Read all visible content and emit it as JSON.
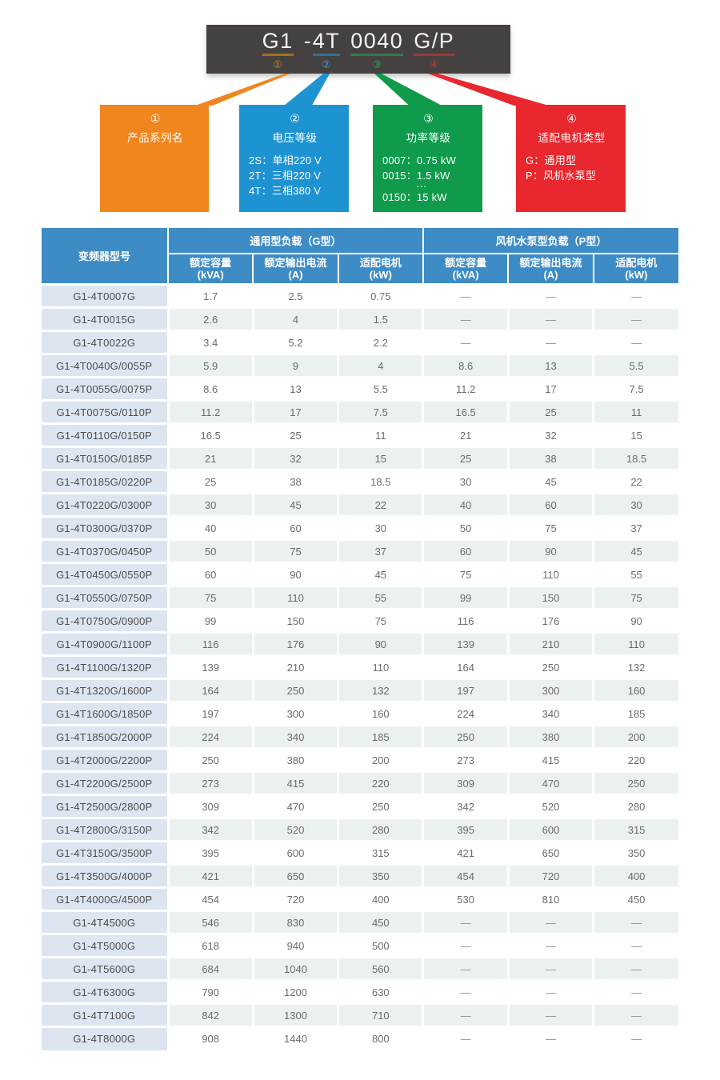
{
  "colors": {
    "banner_bg": "#454140",
    "series_orange": "#F0861E",
    "voltage_blue": "#1E93D2",
    "power_green": "#0F9B4B",
    "motor_red": "#E8282E",
    "header_blue": "#3E8CC6",
    "model_col_bg": "#DDE5F0",
    "stripe_bg": "#EBF1F0",
    "underline_orange": "#A96E1F",
    "underline_blue": "#2D6F9F",
    "underline_green": "#2E7B4D",
    "underline_red": "#9C3A3A",
    "marker_orange": "#C98A2D",
    "marker_blue": "#4095D2",
    "marker_green": "#33A35C",
    "marker_red": "#C4393C"
  },
  "banner": {
    "tokens": [
      {
        "prefix": "",
        "text": "G1",
        "marker": "①"
      },
      {
        "prefix": "-",
        "text": "4T",
        "marker": "②"
      },
      {
        "prefix": "",
        "text": "0040",
        "marker": "③"
      },
      {
        "prefix": "",
        "text": "G/P",
        "marker": "④"
      }
    ]
  },
  "callouts": [
    {
      "marker": "①",
      "title": "产品系列名",
      "lines": []
    },
    {
      "marker": "②",
      "title": "电压等级",
      "lines": [
        "2S：单相220 V",
        "2T：三相220 V",
        "4T：三相380 V"
      ]
    },
    {
      "marker": "③",
      "title": "功率等级",
      "lines": [
        "0007：0.75 kW",
        "0015：1.5 kW",
        "···",
        "0150：15 kW"
      ]
    },
    {
      "marker": "④",
      "title": "适配电机类型",
      "lines": [
        "G：通用型",
        "P：风机水泵型"
      ]
    }
  ],
  "table": {
    "model_header": "变频器型号",
    "group_headers": [
      "通用型负载（G型）",
      "风机水泵型负载（P型）"
    ],
    "sub_headers": [
      "额定容量\n(kVA)",
      "额定输出电流\n(A)",
      "适配电机\n(kW)",
      "额定容量\n(kVA)",
      "额定输出电流\n(A)",
      "适配电机\n(kW)"
    ],
    "rows": [
      [
        "G1-4T0007G",
        "1.7",
        "2.5",
        "0.75",
        "—",
        "—",
        "—"
      ],
      [
        "G1-4T0015G",
        "2.6",
        "4",
        "1.5",
        "—",
        "—",
        "—"
      ],
      [
        "G1-4T0022G",
        "3.4",
        "5.2",
        "2.2",
        "—",
        "—",
        "—"
      ],
      [
        "G1-4T0040G/0055P",
        "5.9",
        "9",
        "4",
        "8.6",
        "13",
        "5.5"
      ],
      [
        "G1-4T0055G/0075P",
        "8.6",
        "13",
        "5.5",
        "11.2",
        "17",
        "7.5"
      ],
      [
        "G1-4T0075G/0110P",
        "11.2",
        "17",
        "7.5",
        "16.5",
        "25",
        "11"
      ],
      [
        "G1-4T0110G/0150P",
        "16.5",
        "25",
        "11",
        "21",
        "32",
        "15"
      ],
      [
        "G1-4T0150G/0185P",
        "21",
        "32",
        "15",
        "25",
        "38",
        "18.5"
      ],
      [
        "G1-4T0185G/0220P",
        "25",
        "38",
        "18.5",
        "30",
        "45",
        "22"
      ],
      [
        "G1-4T0220G/0300P",
        "30",
        "45",
        "22",
        "40",
        "60",
        "30"
      ],
      [
        "G1-4T0300G/0370P",
        "40",
        "60",
        "30",
        "50",
        "75",
        "37"
      ],
      [
        "G1-4T0370G/0450P",
        "50",
        "75",
        "37",
        "60",
        "90",
        "45"
      ],
      [
        "G1-4T0450G/0550P",
        "60",
        "90",
        "45",
        "75",
        "110",
        "55"
      ],
      [
        "G1-4T0550G/0750P",
        "75",
        "110",
        "55",
        "99",
        "150",
        "75"
      ],
      [
        "G1-4T0750G/0900P",
        "99",
        "150",
        "75",
        "116",
        "176",
        "90"
      ],
      [
        "G1-4T0900G/1100P",
        "116",
        "176",
        "90",
        "139",
        "210",
        "110"
      ],
      [
        "G1-4T1100G/1320P",
        "139",
        "210",
        "110",
        "164",
        "250",
        "132"
      ],
      [
        "G1-4T1320G/1600P",
        "164",
        "250",
        "132",
        "197",
        "300",
        "160"
      ],
      [
        "G1-4T1600G/1850P",
        "197",
        "300",
        "160",
        "224",
        "340",
        "185"
      ],
      [
        "G1-4T1850G/2000P",
        "224",
        "340",
        "185",
        "250",
        "380",
        "200"
      ],
      [
        "G1-4T2000G/2200P",
        "250",
        "380",
        "200",
        "273",
        "415",
        "220"
      ],
      [
        "G1-4T2200G/2500P",
        "273",
        "415",
        "220",
        "309",
        "470",
        "250"
      ],
      [
        "G1-4T2500G/2800P",
        "309",
        "470",
        "250",
        "342",
        "520",
        "280"
      ],
      [
        "G1-4T2800G/3150P",
        "342",
        "520",
        "280",
        "395",
        "600",
        "315"
      ],
      [
        "G1-4T3150G/3500P",
        "395",
        "600",
        "315",
        "421",
        "650",
        "350"
      ],
      [
        "G1-4T3500G/4000P",
        "421",
        "650",
        "350",
        "454",
        "720",
        "400"
      ],
      [
        "G1-4T4000G/4500P",
        "454",
        "720",
        "400",
        "530",
        "810",
        "450"
      ],
      [
        "G1-4T4500G",
        "546",
        "830",
        "450",
        "—",
        "—",
        "—"
      ],
      [
        "G1-4T5000G",
        "618",
        "940",
        "500",
        "—",
        "—",
        "—"
      ],
      [
        "G1-4T5600G",
        "684",
        "1040",
        "560",
        "—",
        "—",
        "—"
      ],
      [
        "G1-4T6300G",
        "790",
        "1200",
        "630",
        "—",
        "—",
        "—"
      ],
      [
        "G1-4T7100G",
        "842",
        "1300",
        "710",
        "—",
        "—",
        "—"
      ],
      [
        "G1-4T8000G",
        "908",
        "1440",
        "800",
        "—",
        "—",
        "—"
      ]
    ]
  }
}
